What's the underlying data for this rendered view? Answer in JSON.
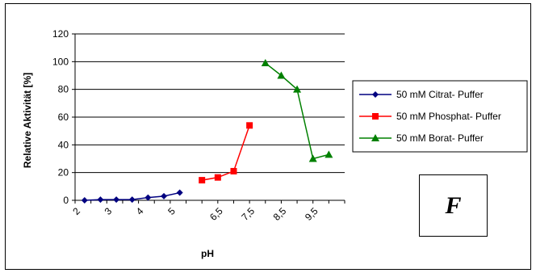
{
  "chart_data": {
    "type": "line",
    "ylabel": "Relative Aktivität [%]",
    "xlabel": "pH",
    "ylim": [
      0,
      120
    ],
    "yticks": [
      0,
      20,
      40,
      60,
      80,
      100,
      120
    ],
    "xticks": [
      "2",
      "3",
      "4",
      "5",
      "6,5",
      "7,5",
      "8,5",
      "9,5"
    ],
    "xlim": [
      2,
      10.5
    ],
    "grid": true,
    "legend_position": "right",
    "panel_label": "F",
    "series": [
      {
        "name": "50 mM Citrat- Puffer",
        "color": "#000080",
        "marker": "diamond",
        "points": [
          [
            2.3,
            0
          ],
          [
            2.8,
            0.5
          ],
          [
            3.3,
            0.5
          ],
          [
            3.8,
            0.5
          ],
          [
            4.3,
            2
          ],
          [
            4.8,
            3
          ],
          [
            5.3,
            5.5
          ]
        ]
      },
      {
        "name": "50 mM Phosphat- Puffer",
        "color": "#ff0000",
        "marker": "square",
        "points": [
          [
            6.0,
            14.5
          ],
          [
            6.5,
            16.5
          ],
          [
            7.0,
            21
          ],
          [
            7.5,
            54
          ]
        ]
      },
      {
        "name": "50 mM Borat- Puffer",
        "color": "#008000",
        "marker": "triangle",
        "points": [
          [
            8.0,
            99
          ],
          [
            8.5,
            90
          ],
          [
            9.0,
            80
          ],
          [
            9.5,
            30
          ],
          [
            10.0,
            33
          ]
        ]
      }
    ]
  }
}
